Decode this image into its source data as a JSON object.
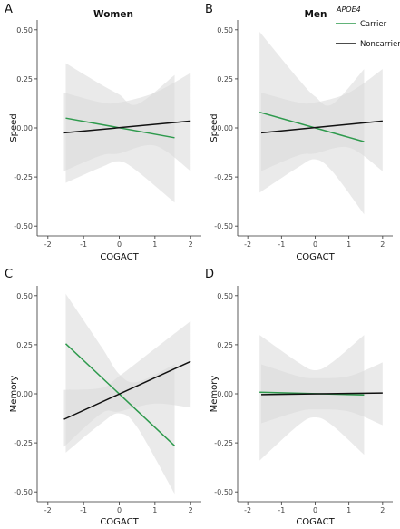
{
  "legend": {
    "title": "APOE4",
    "items": [
      {
        "label": "Carrier",
        "color": "#2e9a4d"
      },
      {
        "label": "Noncarrier",
        "color": "#111111"
      }
    ]
  },
  "colors": {
    "ribbon": "#d9d9d9",
    "carrier": "#2e9a4d",
    "noncarrier": "#111111"
  },
  "chart_data": [
    {
      "panel": "A",
      "title": "Women",
      "type": "line",
      "xlabel": "COGACT",
      "ylabel": "Speed",
      "xlim": [
        -2.3,
        2.3
      ],
      "ylim": [
        -0.55,
        0.55
      ],
      "xticks": [
        -2,
        -1,
        0,
        1,
        2
      ],
      "yticks": [
        -0.5,
        -0.25,
        0,
        0.25,
        0.5
      ],
      "xtick_labels": [
        "-2",
        "-1",
        "0",
        "1",
        "2"
      ],
      "ytick_labels": [
        "-0.50",
        "-0.25",
        "0.00",
        "0.25",
        "0.50"
      ],
      "series": [
        {
          "name": "Carrier",
          "x": [
            -1.5,
            1.55
          ],
          "y": [
            0.05,
            -0.05
          ],
          "band": {
            "x": [
              -1.5,
              -0.5,
              0,
              0.5,
              1.55
            ],
            "lower": [
              -0.28,
              -0.2,
              -0.17,
              -0.22,
              -0.38
            ],
            "upper": [
              0.33,
              0.22,
              0.17,
              0.12,
              0.27
            ]
          }
        },
        {
          "name": "Noncarrier",
          "x": [
            -1.55,
            2.0
          ],
          "y": [
            -0.025,
            0.035
          ],
          "band": {
            "x": [
              -1.55,
              -0.5,
              0,
              1,
              2.0
            ],
            "lower": [
              -0.22,
              -0.14,
              -0.13,
              -0.09,
              -0.22
            ],
            "upper": [
              0.18,
              0.13,
              0.13,
              0.18,
              0.28
            ]
          }
        }
      ]
    },
    {
      "panel": "B",
      "title": "Men",
      "type": "line",
      "xlabel": "COGACT",
      "ylabel": "Speed",
      "xlim": [
        -2.3,
        2.3
      ],
      "ylim": [
        -0.55,
        0.55
      ],
      "xticks": [
        -2,
        -1,
        0,
        1,
        2
      ],
      "yticks": [
        -0.5,
        -0.25,
        0,
        0.25,
        0.5
      ],
      "xtick_labels": [
        "-2",
        "-1",
        "0",
        "1",
        "2"
      ],
      "ytick_labels": [
        "-0.50",
        "-0.25",
        "0.00",
        "0.25",
        "0.50"
      ],
      "series": [
        {
          "name": "Carrier",
          "x": [
            -1.65,
            1.45
          ],
          "y": [
            0.08,
            -0.07
          ],
          "band": {
            "x": [
              -1.65,
              -0.5,
              0,
              0.5,
              1.45
            ],
            "lower": [
              -0.33,
              -0.2,
              -0.16,
              -0.22,
              -0.44
            ],
            "upper": [
              0.49,
              0.25,
              0.16,
              0.12,
              0.3
            ]
          }
        },
        {
          "name": "Noncarrier",
          "x": [
            -1.6,
            2.0
          ],
          "y": [
            -0.025,
            0.035
          ],
          "band": {
            "x": [
              -1.6,
              -0.5,
              0,
              1,
              2.0
            ],
            "lower": [
              -0.22,
              -0.14,
              -0.13,
              -0.1,
              -0.22
            ],
            "upper": [
              0.18,
              0.13,
              0.13,
              0.18,
              0.3
            ]
          }
        }
      ]
    },
    {
      "panel": "C",
      "title": "",
      "type": "line",
      "xlabel": "COGACT",
      "ylabel": "Memory",
      "xlim": [
        -2.3,
        2.3
      ],
      "ylim": [
        -0.55,
        0.55
      ],
      "xticks": [
        -2,
        -1,
        0,
        1,
        2
      ],
      "yticks": [
        -0.5,
        -0.25,
        0,
        0.25,
        0.5
      ],
      "xtick_labels": [
        "-2",
        "-1",
        "0",
        "1",
        "2"
      ],
      "ytick_labels": [
        "-0.50",
        "-0.25",
        "0.00",
        "0.25",
        "0.50"
      ],
      "series": [
        {
          "name": "Carrier",
          "x": [
            -1.5,
            1.55
          ],
          "y": [
            0.255,
            -0.265
          ],
          "band": {
            "x": [
              -1.5,
              -0.5,
              0,
              0.5,
              1.55
            ],
            "lower": [
              -0.3,
              -0.15,
              -0.1,
              -0.17,
              -0.51
            ],
            "upper": [
              0.51,
              0.24,
              0.1,
              0.06,
              0.15
            ]
          }
        },
        {
          "name": "Noncarrier",
          "x": [
            -1.55,
            2.0
          ],
          "y": [
            -0.13,
            0.165
          ],
          "band": {
            "x": [
              -1.55,
              -0.5,
              0,
              1,
              2.0
            ],
            "lower": [
              -0.27,
              -0.1,
              -0.09,
              -0.05,
              -0.07
            ],
            "upper": [
              0.02,
              0.03,
              0.09,
              0.23,
              0.37
            ]
          }
        }
      ]
    },
    {
      "panel": "D",
      "title": "",
      "type": "line",
      "xlabel": "COGACT",
      "ylabel": "Memory",
      "xlim": [
        -2.3,
        2.3
      ],
      "ylim": [
        -0.55,
        0.55
      ],
      "xticks": [
        -2,
        -1,
        0,
        1,
        2
      ],
      "yticks": [
        -0.5,
        -0.25,
        0,
        0.25,
        0.5
      ],
      "xtick_labels": [
        "-2",
        "-1",
        "0",
        "1",
        "2"
      ],
      "ytick_labels": [
        "-0.50",
        "-0.25",
        "0.00",
        "0.25",
        "0.50"
      ],
      "series": [
        {
          "name": "Carrier",
          "x": [
            -1.65,
            1.45
          ],
          "y": [
            0.008,
            -0.006
          ],
          "band": {
            "x": [
              -1.65,
              -0.5,
              0,
              0.5,
              1.45
            ],
            "lower": [
              -0.34,
              -0.16,
              -0.12,
              -0.16,
              -0.31
            ],
            "upper": [
              0.3,
              0.16,
              0.12,
              0.16,
              0.3
            ]
          }
        },
        {
          "name": "Noncarrier",
          "x": [
            -1.6,
            2.0
          ],
          "y": [
            -0.004,
            0.004
          ],
          "band": {
            "x": [
              -1.6,
              -0.5,
              0,
              1,
              2.0
            ],
            "lower": [
              -0.15,
              -0.09,
              -0.08,
              -0.09,
              -0.16
            ],
            "upper": [
              0.15,
              0.09,
              0.08,
              0.09,
              0.16
            ]
          }
        }
      ]
    }
  ]
}
